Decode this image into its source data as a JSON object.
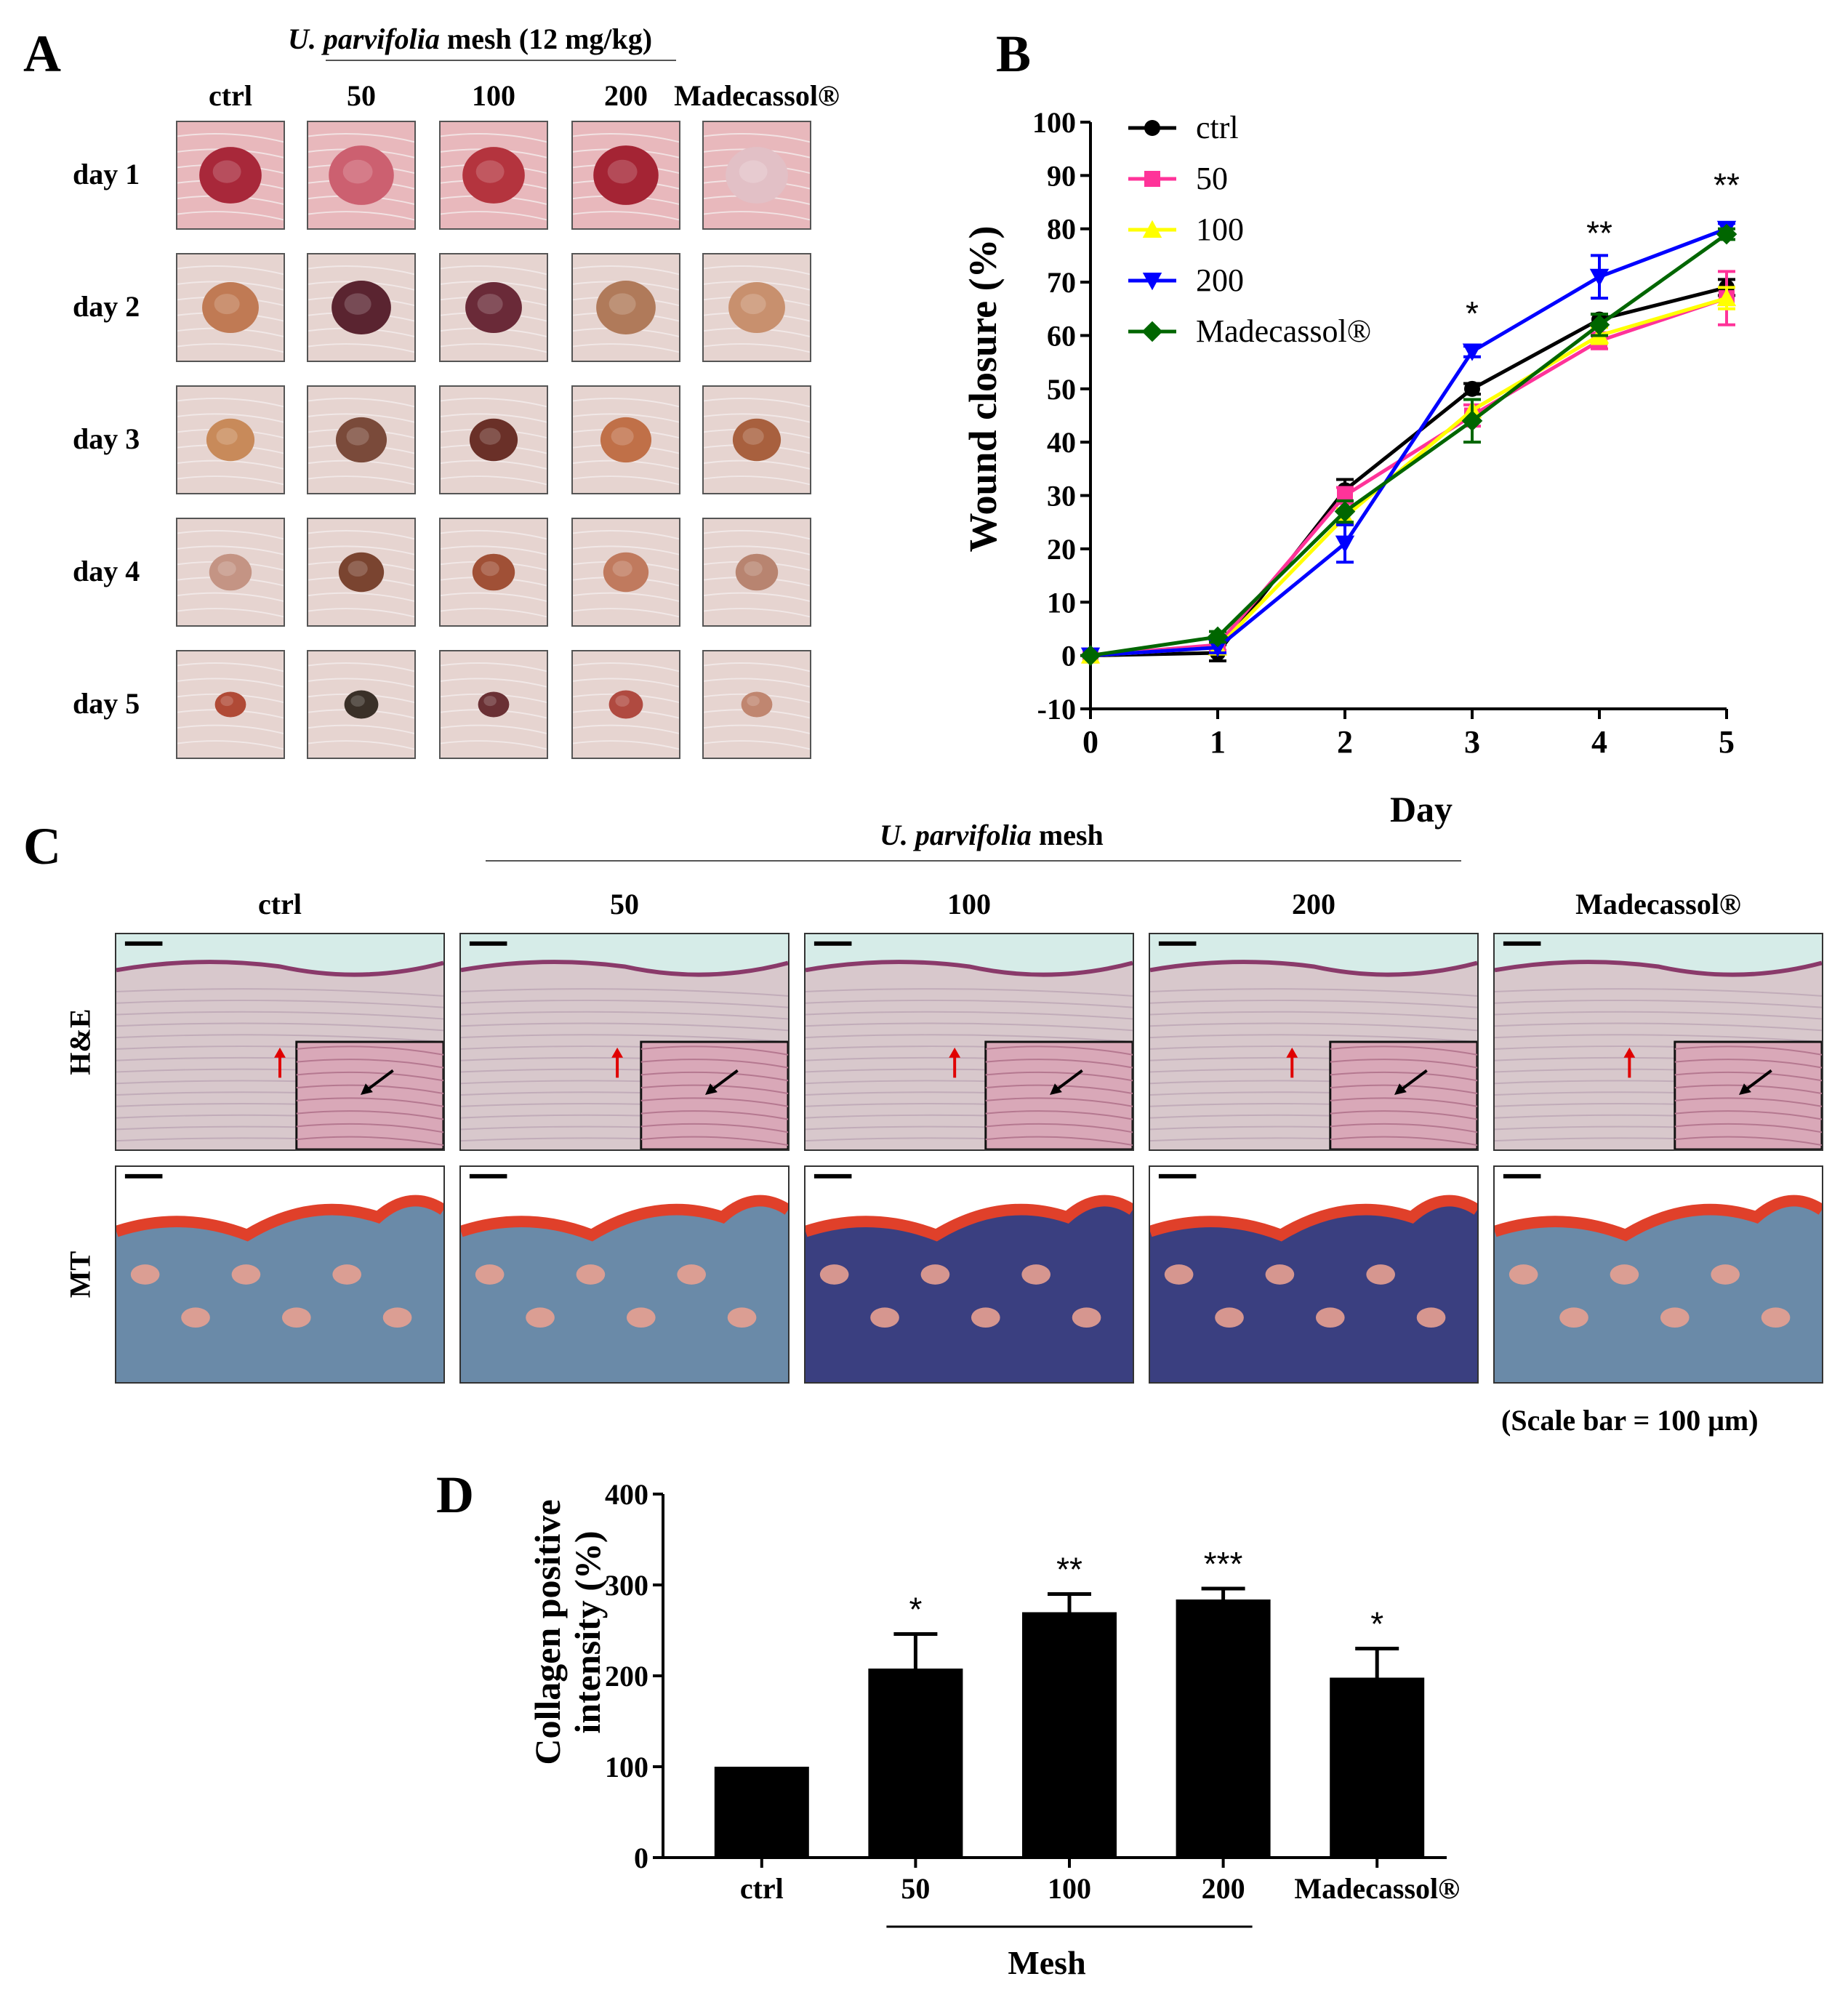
{
  "panel_a": {
    "letter": "A",
    "group_species": "U. parvifolia",
    "group_rest": " mesh (12 mg/kg)",
    "columns": [
      "ctrl",
      "50",
      "100",
      "200",
      "Madecassol®"
    ],
    "rows": [
      "day 1",
      "day 2",
      "day 3",
      "day 4",
      "day 5"
    ]
  },
  "panel_b": {
    "letter": "B"
  },
  "panel_c": {
    "letter": "C",
    "group_species": "U. parvifolia",
    "group_rest": " mesh",
    "columns": [
      "ctrl",
      "50",
      "100",
      "200",
      "Madecassol®"
    ],
    "rows": [
      "H&E",
      "MT"
    ],
    "scale_note": "(Scale bar = 100 μm)"
  },
  "panel_d": {
    "letter": "D"
  },
  "chart_data": [
    {
      "type": "line",
      "xlabel": "Day",
      "ylabel": "Wound closure (%)",
      "xlim": [
        0,
        5
      ],
      "ylim": [
        -10,
        100
      ],
      "x": [
        0,
        1,
        2,
        3,
        4,
        5
      ],
      "yticks": [
        -10,
        0,
        10,
        20,
        30,
        40,
        50,
        60,
        70,
        80,
        90,
        100
      ],
      "legend_position": "top-left",
      "series": [
        {
          "name": "ctrl",
          "color": "#000000",
          "marker": "circle",
          "values": [
            0,
            0.5,
            31,
            50,
            63,
            69
          ],
          "errors": [
            0,
            1.5,
            2,
            1,
            1,
            1.5
          ]
        },
        {
          "name": "50",
          "color": "#ff3399",
          "marker": "square",
          "values": [
            0,
            2,
            30,
            45,
            59,
            67
          ],
          "errors": [
            0,
            1,
            1.5,
            2,
            1.5,
            5
          ]
        },
        {
          "name": "100",
          "color": "#ffff00",
          "marker": "triangle-up",
          "values": [
            0,
            1.5,
            26,
            46,
            60,
            67
          ],
          "errors": [
            0,
            1,
            1.5,
            2,
            1.5,
            2
          ]
        },
        {
          "name": "200",
          "color": "#0000ff",
          "marker": "triangle-down",
          "values": [
            0,
            1.5,
            21,
            57,
            71,
            80
          ],
          "errors": [
            0,
            1,
            3.5,
            1,
            4,
            1
          ]
        },
        {
          "name": "Madecassol®",
          "color": "#006600",
          "marker": "diamond",
          "values": [
            0,
            3.5,
            27,
            44,
            62,
            79
          ],
          "errors": [
            0,
            1,
            2,
            4,
            2,
            1
          ]
        }
      ],
      "annotations": [
        {
          "x": 3,
          "y": 62,
          "text": "*"
        },
        {
          "x": 4,
          "y": 77,
          "text": "**"
        },
        {
          "x": 5,
          "y": 86,
          "text": "**"
        }
      ]
    },
    {
      "type": "bar",
      "ylabel_line1": "Collagen positive",
      "ylabel_line2": "intensity (%)",
      "xlabel": "Mesh",
      "categories": [
        "ctrl",
        "50",
        "100",
        "200",
        "Madecassol®"
      ],
      "values": [
        100,
        208,
        270,
        284,
        198
      ],
      "errors": [
        0,
        38,
        20,
        12,
        32
      ],
      "significance": [
        "",
        "*",
        "**",
        "***",
        "*"
      ],
      "ylim": [
        0,
        400
      ],
      "yticks": [
        0,
        100,
        200,
        300,
        400
      ],
      "bar_color": "#000000"
    }
  ]
}
